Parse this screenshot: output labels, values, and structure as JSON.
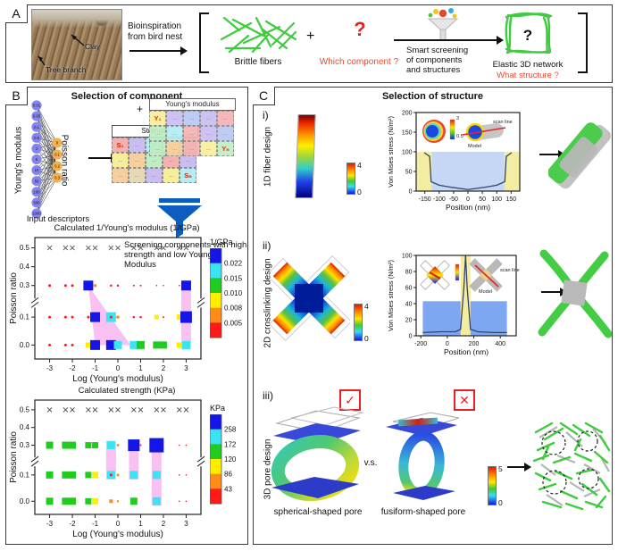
{
  "colors": {
    "accent_red": "#e82222",
    "fiber_green": "#3ecc3e",
    "funnel_blue": "#0f5cc0",
    "highlight_pink": "#f7a6ec"
  },
  "panelA": {
    "label": "A",
    "nest_clay": "Clay",
    "nest_branch": "Tree branch",
    "bio_line1": "Bioinspiration",
    "bio_line2": "from bird nest",
    "brittle_fibers": "Brittle fibers",
    "plus": "+",
    "question": "?",
    "which_component": "Which component ?",
    "screen_line1": "Smart screening",
    "screen_line2": "of components",
    "screen_line3": "and structures",
    "network_q": "?",
    "elastic": "Elastic 3D network",
    "what_structure": "What structure ?"
  },
  "panelB": {
    "label": "B",
    "title": "Selection of component",
    "nn": {
      "left_axis": "Young's modulus",
      "right_axis": "Poisson ratio",
      "caption": "Input descriptors",
      "inputs": [
        "0.01",
        "0.05",
        "0.1",
        "0.5",
        "1",
        "5",
        "10",
        "50",
        "100",
        "500",
        "1000"
      ],
      "outputs": [
        "0",
        "0.1",
        "0.2",
        "0.3"
      ],
      "input_color": "#8585f0",
      "output_color": "#f5b052"
    },
    "plus": "+",
    "grid_strength": {
      "title": "Strength",
      "cells": [
        "S₁",
        "...",
        "...",
        "...",
        "...",
        "...",
        "...",
        "...",
        "...",
        "...",
        "...",
        "...",
        "...",
        "...",
        "Sₙ"
      ],
      "cell_colors": [
        "#f5b1b1",
        "#c9bdf2",
        "#b3ecf2",
        "#f7ee9a",
        "#bfeec2",
        "#f7ee9a",
        "#f7cf9e",
        "#bfeec2",
        "#f5b1b1",
        "#c9bdf2",
        "#f7cf9e",
        "#e8d9b5",
        "#c9bdf2",
        "#f7ee9a",
        "#b3ecf2"
      ]
    },
    "grid_ym": {
      "title": "Young's modulus",
      "cells": [
        "Y₁",
        "...",
        "...",
        "...",
        "...",
        "...",
        "...",
        "...",
        "...",
        "...",
        "...",
        "...",
        "...",
        "...",
        "Yₙ"
      ],
      "cell_colors": [
        "#f7ee9a",
        "#c9bdf2",
        "#b9c8f5",
        "#c9bdf2",
        "#f5b1b1",
        "#bfeec2",
        "#b3ecf2",
        "#f5b1b1",
        "#c9bdf2",
        "#b9c8f5",
        "#bfeec2",
        "#f7cf9e",
        "#f5b1b1",
        "#f7ee9a",
        "#bfeec2"
      ]
    },
    "screening_caption": "Screening components with high strength and low Young's Modulus"
  },
  "panelC": {
    "label": "C",
    "title": "Selection of structure",
    "row1": {
      "num": "i)",
      "side": "1D fiber design",
      "cb_top": "4",
      "cb_bottom": "0"
    },
    "row2": {
      "num": "ii)",
      "side": "2D crosslinking design",
      "cb_top": "4",
      "cb_bottom": "0"
    },
    "row3": {
      "num": "iii)",
      "side": "3D pore design",
      "cb_top": "5",
      "cb_bottom": "0",
      "vs": "v.s.",
      "check": "✓",
      "cross": "✕",
      "left_caption": "spherical-shaped pore",
      "right_caption": "fusiform-shaped pore"
    }
  },
  "chart_data": [
    {
      "id": "b1",
      "type": "scatter",
      "title": "Calculated 1/Young's modulus (1/GPa)",
      "xlabel": "Log (Young's modulus)",
      "ylabel": "Poisson ratio",
      "x_ticks": [
        "-3",
        "-2",
        "-1",
        "0",
        "1",
        "2",
        "3"
      ],
      "x_tick_vals": [
        -3,
        -2,
        -1,
        0,
        1,
        2,
        3
      ],
      "y_ticks": [
        "0.5",
        "0.4",
        "0.3",
        "0.1",
        "0.0"
      ],
      "y_tick_vals": [
        0.5,
        0.4,
        0.3,
        0.1,
        0.0
      ],
      "xlim": [
        -3.65,
        3.65
      ],
      "axis_break": true,
      "colorbar": {
        "title": "1/GPa",
        "colors": [
          "#1515e8",
          "#3ae4f2",
          "#21cc21",
          "#ffee00",
          "#ff8c1a",
          "#ff1a1a"
        ],
        "labels": [
          "0.022",
          "0.015",
          "0.010",
          "0.008",
          "0.005"
        ]
      },
      "highlight": {
        "color": "#f7a6ec",
        "triangle": [
          [
            -1.3,
            0.3
          ],
          [
            -1.0,
            0.0
          ],
          [
            0.55,
            0.0
          ]
        ],
        "bands": [
          {
            "x": 3,
            "y0": 0.0,
            "y1": 0.3
          }
        ]
      },
      "points": [
        [
          -3,
          0.5,
          "x",
          "x",
          5
        ],
        [
          -2.3,
          0.5,
          "x",
          "x",
          5
        ],
        [
          -2,
          0.5,
          "x",
          "x",
          5
        ],
        [
          -1.3,
          0.5,
          "x",
          "x",
          5
        ],
        [
          -1,
          0.5,
          "x",
          "x",
          5
        ],
        [
          -0.3,
          0.5,
          "x",
          "x",
          5
        ],
        [
          0,
          0.5,
          "x",
          "x",
          5
        ],
        [
          0.7,
          0.5,
          "x",
          "x",
          5
        ],
        [
          1,
          0.5,
          "x",
          "x",
          5
        ],
        [
          1.7,
          0.5,
          "x",
          "x",
          5
        ],
        [
          2,
          0.5,
          "x",
          "x",
          5
        ],
        [
          2.7,
          0.5,
          "x",
          "x",
          5
        ],
        [
          3,
          0.5,
          "x",
          "x",
          5
        ],
        [
          -3,
          0.3,
          "dot",
          "red",
          3
        ],
        [
          -2.3,
          0.3,
          "dot",
          "red",
          3
        ],
        [
          -2,
          0.3,
          "dot",
          "red",
          3
        ],
        [
          -1.3,
          0.3,
          "sq",
          "blue",
          11
        ],
        [
          -1,
          0.3,
          "dot",
          "orange",
          3.5
        ],
        [
          -0.3,
          0.3,
          "dot",
          "red",
          2.5
        ],
        [
          0,
          0.3,
          "dot",
          "red",
          2.5
        ],
        [
          0.7,
          0.3,
          "dot",
          "red",
          2
        ],
        [
          1,
          0.3,
          "dot",
          "red",
          2
        ],
        [
          1.7,
          0.3,
          "dot",
          "red",
          1.6
        ],
        [
          2,
          0.3,
          "dot",
          "red",
          1.6
        ],
        [
          2.7,
          0.3,
          "dot",
          "red",
          1.6
        ],
        [
          3,
          0.3,
          "sq",
          "blue",
          11
        ],
        [
          -3,
          0.1,
          "dot",
          "red",
          3
        ],
        [
          -2.3,
          0.1,
          "dot",
          "red",
          3
        ],
        [
          -2,
          0.1,
          "dot",
          "red",
          3
        ],
        [
          -1.3,
          0.1,
          "dot",
          "red",
          3
        ],
        [
          -1,
          0.1,
          "sq",
          "blue",
          11
        ],
        [
          -0.3,
          0.1,
          "sq",
          "cyan",
          11
        ],
        [
          -0.3,
          0.1,
          "dot",
          "red",
          3
        ],
        [
          0,
          0.1,
          "dot",
          "orange",
          3.5
        ],
        [
          0.7,
          0.1,
          "dot",
          "red",
          2.5
        ],
        [
          1,
          0.1,
          "dot",
          "red",
          2.5
        ],
        [
          1.7,
          0.1,
          "sq",
          "yellow",
          5
        ],
        [
          2,
          0.1,
          "dot",
          "red",
          2
        ],
        [
          2.7,
          0.1,
          "sq",
          "yellow",
          6
        ],
        [
          3,
          0.1,
          "sq",
          "blue",
          13
        ],
        [
          -3,
          0,
          "dot",
          "red",
          3
        ],
        [
          -2.3,
          0,
          "dot",
          "red",
          3
        ],
        [
          -2,
          0,
          "dot",
          "red",
          3
        ],
        [
          -1.3,
          0,
          "sq",
          "yellow",
          6
        ],
        [
          -1,
          0,
          "sq",
          "blue",
          11
        ],
        [
          -0.3,
          0,
          "sq",
          "blue",
          11
        ],
        [
          0,
          0,
          "sq",
          "cyan",
          9
        ],
        [
          0.7,
          0,
          "sq",
          "cyan",
          9
        ],
        [
          1,
          0,
          "sq",
          "green",
          9
        ],
        [
          1.7,
          0,
          "sq",
          "green",
          8
        ],
        [
          2,
          0,
          "sq",
          "green",
          8
        ],
        [
          2.7,
          0,
          "sq",
          "yellow",
          6
        ],
        [
          3,
          0,
          "sq",
          "cyan",
          9
        ]
      ]
    },
    {
      "id": "b2",
      "type": "scatter",
      "title": "Calculated strength (KPa)",
      "xlabel": "Log (Young's modulus)",
      "ylabel": "Poisson ratio",
      "x_ticks": [
        "-3",
        "-2",
        "-1",
        "0",
        "1",
        "2",
        "3"
      ],
      "x_tick_vals": [
        -3,
        -2,
        -1,
        0,
        1,
        2,
        3
      ],
      "y_ticks": [
        "0.5",
        "0.4",
        "0.3",
        "0.1",
        "0.0"
      ],
      "y_tick_vals": [
        0.5,
        0.4,
        0.3,
        0.1,
        0.0
      ],
      "xlim": [
        -3.65,
        3.65
      ],
      "axis_break": true,
      "colorbar": {
        "title": "KPa",
        "colors": [
          "#1515e8",
          "#3ae4f2",
          "#21cc21",
          "#ffee00",
          "#ff8c1a",
          "#ff1a1a"
        ],
        "labels": [
          "258",
          "172",
          "120",
          "86",
          "43"
        ]
      },
      "highlight": {
        "color": "#f7a6ec",
        "bands": [
          {
            "x": -0.3,
            "y0": 0.1,
            "y1": 0.3
          },
          {
            "x": 0.7,
            "y0": 0.1,
            "y1": 0.3
          },
          {
            "x": 1.7,
            "y0": 0.0,
            "y1": 0.3
          }
        ]
      },
      "points": [
        [
          -3,
          0.5,
          "x",
          "x",
          5
        ],
        [
          -2.3,
          0.5,
          "x",
          "x",
          5
        ],
        [
          -2,
          0.5,
          "x",
          "x",
          5
        ],
        [
          -1.3,
          0.5,
          "x",
          "x",
          5
        ],
        [
          -1,
          0.5,
          "x",
          "x",
          5
        ],
        [
          -0.3,
          0.5,
          "x",
          "x",
          5
        ],
        [
          0,
          0.5,
          "x",
          "x",
          5
        ],
        [
          0.7,
          0.5,
          "x",
          "x",
          5
        ],
        [
          1,
          0.5,
          "x",
          "x",
          5
        ],
        [
          1.7,
          0.5,
          "x",
          "x",
          5
        ],
        [
          2,
          0.5,
          "x",
          "x",
          5
        ],
        [
          2.7,
          0.5,
          "x",
          "x",
          5
        ],
        [
          3,
          0.5,
          "x",
          "x",
          5
        ],
        [
          -3,
          0.3,
          "sq",
          "green",
          8
        ],
        [
          -2.3,
          0.3,
          "sq",
          "green",
          8
        ],
        [
          -2,
          0.3,
          "sq",
          "green",
          8
        ],
        [
          -1.3,
          0.3,
          "sq",
          "green",
          7
        ],
        [
          -1,
          0.3,
          "sq",
          "green",
          7
        ],
        [
          -0.3,
          0.3,
          "sq",
          "cyan",
          9
        ],
        [
          0,
          0.3,
          "dot",
          "orange",
          3
        ],
        [
          0.7,
          0.3,
          "sq",
          "blue",
          13
        ],
        [
          1,
          0.3,
          "dot",
          "red",
          2
        ],
        [
          1.7,
          0.3,
          "sq",
          "blue",
          16
        ],
        [
          2.7,
          0.3,
          "dot",
          "red",
          1.6
        ],
        [
          3,
          0.3,
          "dot",
          "red",
          1.6
        ],
        [
          -3,
          0.1,
          "sq",
          "green",
          8
        ],
        [
          -2.3,
          0.1,
          "sq",
          "green",
          8
        ],
        [
          -2,
          0.1,
          "sq",
          "green",
          8
        ],
        [
          -1.3,
          0.1,
          "sq",
          "green",
          7
        ],
        [
          -1,
          0.1,
          "sq",
          "yellow",
          7
        ],
        [
          -0.3,
          0.1,
          "sq",
          "cyan",
          9
        ],
        [
          -0.3,
          0.1,
          "dot",
          "red",
          3
        ],
        [
          0,
          0.1,
          "dot",
          "orange",
          3
        ],
        [
          0.7,
          0.1,
          "sq",
          "cyan",
          9
        ],
        [
          1.7,
          0.1,
          "sq",
          "cyan",
          9
        ],
        [
          2.7,
          0.1,
          "dot",
          "red",
          1.6
        ],
        [
          3,
          0.1,
          "dot",
          "red",
          1.6
        ],
        [
          -3,
          0,
          "sq",
          "green",
          8
        ],
        [
          -2.3,
          0,
          "sq",
          "green",
          8
        ],
        [
          -2,
          0,
          "sq",
          "green",
          8
        ],
        [
          -1.3,
          0,
          "sq",
          "green",
          7
        ],
        [
          -1,
          0,
          "sq",
          "yellow",
          7
        ],
        [
          -0.3,
          0,
          "sq",
          "orange",
          4
        ],
        [
          0,
          0,
          "dot",
          "orange",
          2.5
        ],
        [
          0.7,
          0,
          "sq",
          "green",
          8
        ],
        [
          1.7,
          0,
          "sq",
          "cyan",
          9
        ],
        [
          2.7,
          0,
          "dot",
          "red",
          1.6
        ],
        [
          3,
          0,
          "dot",
          "red",
          1.6
        ]
      ]
    },
    {
      "id": "c1",
      "type": "line",
      "ylabel": "Von Mises stress (N/m²)",
      "xlabel": "Position (nm)",
      "x_ticks": [
        "-150",
        "-100",
        "-50",
        "0",
        "50",
        "100",
        "150"
      ],
      "x_tick_vals": [
        -150,
        -100,
        -50,
        0,
        50,
        100,
        150
      ],
      "y_ticks": [
        "0",
        "50",
        "100",
        "150",
        "200"
      ],
      "y_tick_vals": [
        0,
        50,
        100,
        150,
        200
      ],
      "xlim": [
        -180,
        180
      ],
      "ylim": [
        0,
        200
      ],
      "regions": [
        {
          "x0": -180,
          "x1": -126,
          "y0": 0,
          "y1": 100,
          "color": "#f2eda2"
        },
        {
          "x0": 126,
          "x1": 180,
          "y0": 0,
          "y1": 100,
          "color": "#f2eda2"
        },
        {
          "x0": -126,
          "x1": 126,
          "y0": 0,
          "y1": 100,
          "color": "#c6d6f5"
        }
      ],
      "curve": [
        [
          -152,
          98
        ],
        [
          -133,
          88
        ],
        [
          -128,
          24
        ],
        [
          -100,
          15
        ],
        [
          -60,
          10
        ],
        [
          0,
          4
        ],
        [
          60,
          10
        ],
        [
          100,
          15
        ],
        [
          128,
          24
        ],
        [
          133,
          88
        ],
        [
          152,
          98
        ]
      ],
      "inset": {
        "scan_line": "scan line",
        "model": "Model",
        "cb_top": "3",
        "cb_bottom": "0.5"
      }
    },
    {
      "id": "c2",
      "type": "line",
      "ylabel": "Von Mises stress (N/m²)",
      "xlabel": "Position (nm)",
      "x_ticks": [
        "-200",
        "0",
        "200",
        "400"
      ],
      "x_tick_vals": [
        -200,
        0,
        200,
        400
      ],
      "y_ticks": [
        "0",
        "20",
        "40",
        "60",
        "80",
        "100"
      ],
      "y_tick_vals": [
        0,
        20,
        40,
        60,
        80,
        100
      ],
      "xlim": [
        -235,
        520
      ],
      "ylim": [
        0,
        100
      ],
      "regions": [
        {
          "x0": -185,
          "x1": 450,
          "y0": 0,
          "y1": 43,
          "color": "#7da7f0"
        },
        {
          "x0": 100,
          "x1": 175,
          "y0": 0,
          "y1": 100,
          "color": "#f2eda2"
        }
      ],
      "curve": [
        [
          -185,
          4
        ],
        [
          -50,
          5
        ],
        [
          60,
          5
        ],
        [
          100,
          8
        ],
        [
          125,
          60
        ],
        [
          138,
          100
        ],
        [
          150,
          60
        ],
        [
          175,
          8
        ],
        [
          230,
          5
        ],
        [
          350,
          4
        ],
        [
          450,
          4
        ]
      ],
      "inset": {
        "scan_line": "scan line",
        "model": "Model",
        "cb_top": "5",
        "cb_bottom": "0"
      }
    }
  ]
}
